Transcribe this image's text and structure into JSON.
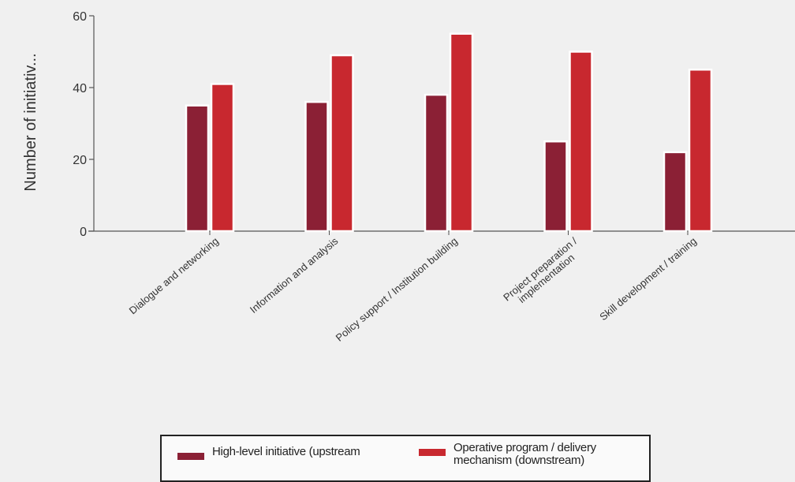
{
  "chart_data": {
    "type": "bar",
    "categories": [
      "Dialogue and networking",
      "Information and analysis",
      "Policy support / Institution building",
      "Project preparation / implementation",
      "Skill development / training"
    ],
    "series": [
      {
        "name": "High-level initiative (upstream",
        "values": [
          35,
          36,
          38,
          25,
          22
        ]
      },
      {
        "name": "Operative program / delivery mechanism (downstream)",
        "values": [
          41,
          49,
          55,
          50,
          45
        ]
      }
    ],
    "ylabel": "Number of initiativ...",
    "xlabel": "",
    "ylim": [
      0,
      60
    ],
    "yticks": [
      0,
      20,
      40,
      60
    ],
    "grid": false,
    "legend": "bottom",
    "colors": [
      "#8b2035",
      "#c8282f"
    ]
  }
}
